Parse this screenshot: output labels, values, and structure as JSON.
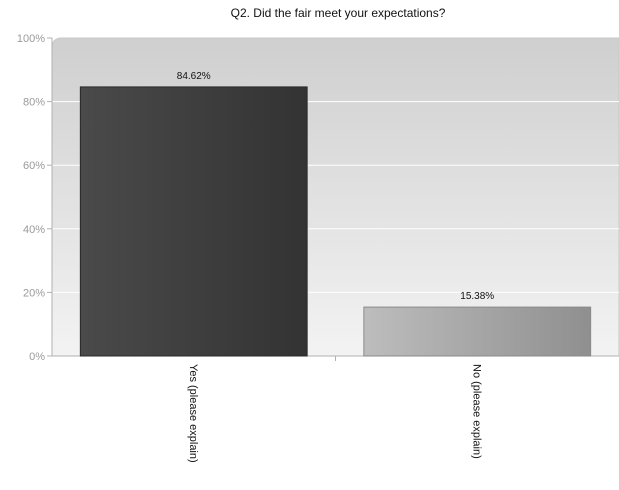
{
  "chart_data": {
    "type": "bar",
    "title": "Q2. Did the fair meet your expectations?",
    "xlabel": "",
    "ylabel": "",
    "categories": [
      "Yes (please explain)",
      "No (please explain)"
    ],
    "values": [
      84.62,
      15.38
    ],
    "value_labels": [
      "84.62%",
      "15.38%"
    ],
    "ylim": [
      0,
      100
    ],
    "yticks": [
      0,
      20,
      40,
      60,
      80,
      100
    ],
    "ytick_labels": [
      "0%",
      "20%",
      "40%",
      "60%",
      "80%",
      "100%"
    ],
    "grid": true,
    "legend": "none",
    "colors": {
      "bar_yes_dark": "#333333",
      "bar_yes_light": "#4a4a4a",
      "bar_no_dark": "#8f8f8f",
      "bar_no_light": "#bdbdbd",
      "plot_bg_top": "#cfcfcf",
      "plot_bg_bottom": "#f3f3f3",
      "gridline": "#ffffff",
      "tick_text": "#9a9a9a",
      "text": "#111111"
    }
  }
}
